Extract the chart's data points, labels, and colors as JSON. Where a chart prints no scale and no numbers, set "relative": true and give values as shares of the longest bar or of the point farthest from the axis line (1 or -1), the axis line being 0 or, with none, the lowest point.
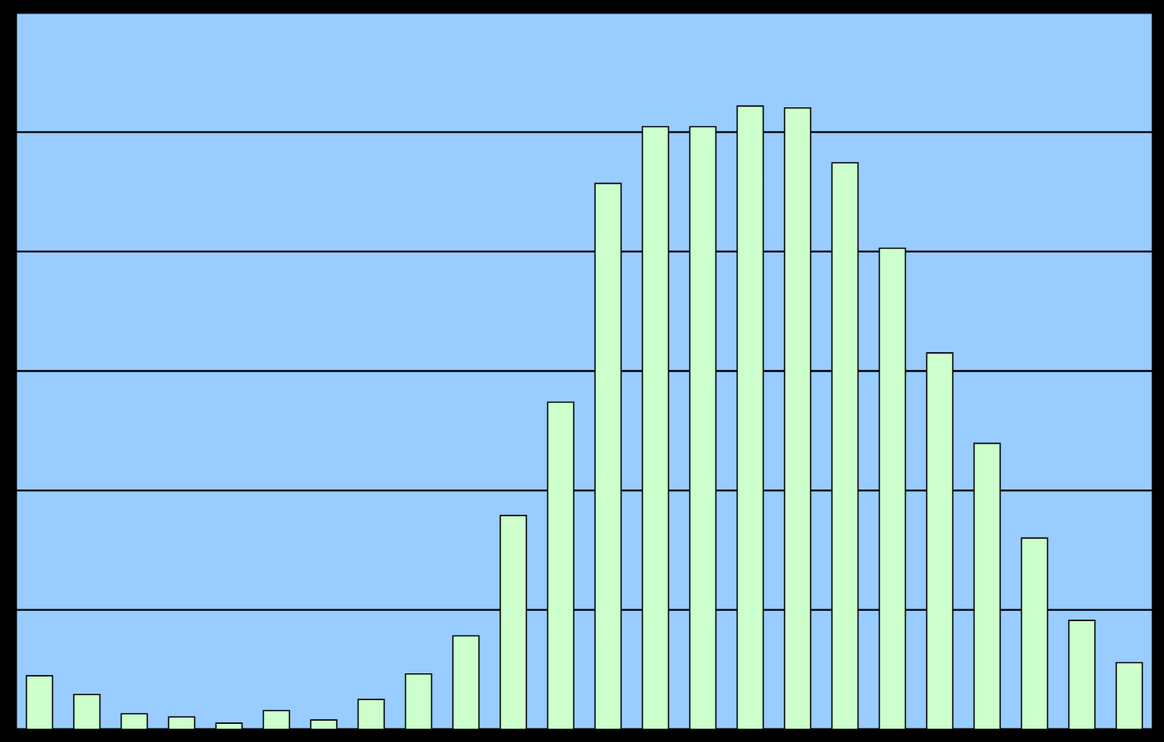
{
  "chart_data": {
    "type": "bar",
    "relative": true,
    "grid": "y",
    "color": "#ccffcc",
    "categories": [
      null,
      null,
      null,
      null,
      null,
      null,
      null,
      null,
      null,
      null,
      null,
      null,
      null,
      null,
      null,
      null,
      null,
      null,
      null,
      null,
      null,
      null,
      null,
      null
    ],
    "values": [
      0.086,
      0.056,
      0.025,
      0.02,
      0.01,
      0.03,
      0.015,
      0.048,
      0.089,
      0.15,
      0.343,
      0.525,
      0.876,
      0.967,
      0.967,
      1,
      0.997,
      0.909,
      0.772,
      0.604,
      0.459,
      0.307,
      0.175,
      0.107
    ]
  }
}
